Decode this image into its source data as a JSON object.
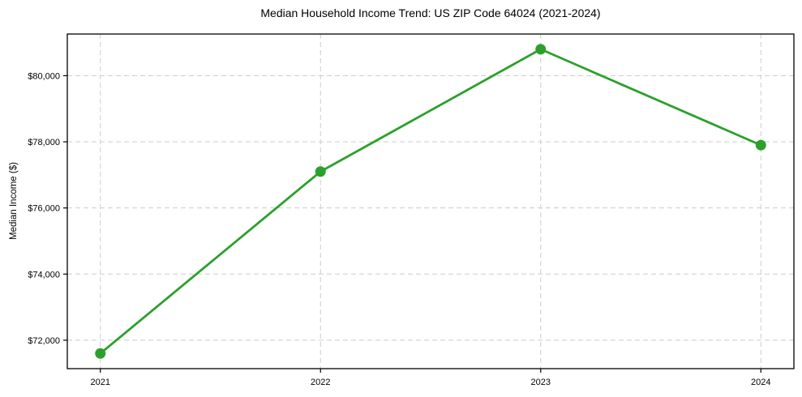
{
  "chart_data": {
    "type": "line",
    "title": "Median Household Income Trend: US ZIP Code 64024 (2021-2024)",
    "xlabel": "",
    "ylabel": "Median Income ($)",
    "x": [
      2021,
      2022,
      2023,
      2024
    ],
    "values": [
      71600,
      77100,
      80800,
      77900
    ],
    "xlim": [
      2020.85,
      2024.15
    ],
    "ylim": [
      71140,
      81260
    ],
    "xticks": [
      2021,
      2022,
      2023,
      2024
    ],
    "xtick_labels": [
      "2021",
      "2022",
      "2023",
      "2024"
    ],
    "yticks": [
      72000,
      74000,
      76000,
      78000,
      80000
    ],
    "ytick_labels": [
      "$72,000",
      "$74,000",
      "$76,000",
      "$78,000",
      "$80,000"
    ],
    "grid": true,
    "grid_style": "dashed",
    "legend": false,
    "colors": {
      "line": "#2ca02c",
      "marker": "#2ca02c",
      "grid": "#cccccc",
      "spine": "#000000",
      "tick_text": "#000000",
      "background": "#ffffff"
    }
  }
}
